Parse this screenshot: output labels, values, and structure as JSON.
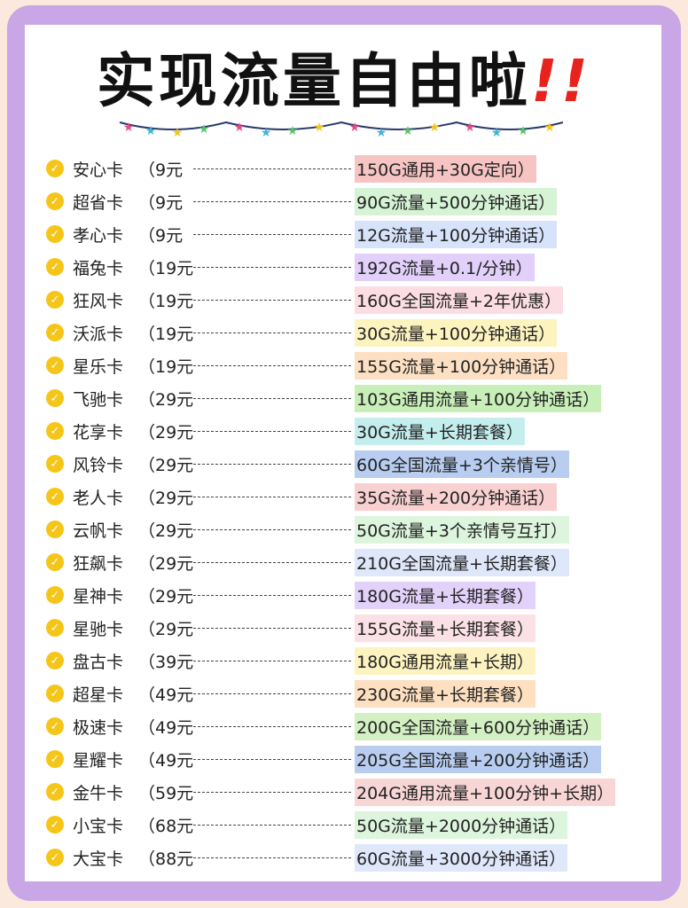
{
  "header": {
    "title": "实现流量自由啦",
    "exclaim": "!!"
  },
  "rows": [
    {
      "name": "安心卡",
      "price": "（9元",
      "plan": "150G通用+30G定向）",
      "color": "#f7c4c4"
    },
    {
      "name": "超省卡",
      "price": "（9元",
      "plan": "90G流量+500分钟通话）",
      "color": "#d6f3d6"
    },
    {
      "name": "孝心卡",
      "price": "（9元",
      "plan": "12G流量+100分钟通话）",
      "color": "#d7e3fb"
    },
    {
      "name": "福兔卡",
      "price": "（19元",
      "plan": "192G流量+0.1/分钟）",
      "color": "#e2d0fa"
    },
    {
      "name": "狂风卡",
      "price": "（19元",
      "plan": "160G全国流量+2年优惠）",
      "color": "#fbdde3"
    },
    {
      "name": "沃派卡",
      "price": "（19元",
      "plan": "30G流量+100分钟通话）",
      "color": "#fdf3bf"
    },
    {
      "name": "星乐卡",
      "price": "（19元",
      "plan": "155G流量+100分钟通话）",
      "color": "#fde0c4"
    },
    {
      "name": "飞驰卡",
      "price": "（29元",
      "plan": "103G通用流量+100分钟通话）",
      "color": "#c9efb9"
    },
    {
      "name": "花享卡",
      "price": "（29元",
      "plan": "30G流量+长期套餐）",
      "color": "#c4eeee"
    },
    {
      "name": "风铃卡",
      "price": "（29元",
      "plan": "60G全国流量+3个亲情号）",
      "color": "#b8cdf0"
    },
    {
      "name": "老人卡",
      "price": "（29元",
      "plan": "35G流量+200分钟通话）",
      "color": "#f9d0d0"
    },
    {
      "name": "云帆卡",
      "price": "（29元",
      "plan": "50G流量+3个亲情号互打）",
      "color": "#dcf5dc"
    },
    {
      "name": "狂飙卡",
      "price": "（29元",
      "plan": "210G全国流量+长期套餐）",
      "color": "#dfe7fa"
    },
    {
      "name": "星神卡",
      "price": "（29元",
      "plan": "180G流量+长期套餐）",
      "color": "#e2d2fa"
    },
    {
      "name": "星驰卡",
      "price": "（29元",
      "plan": "155G流量+长期套餐）",
      "color": "#fbe0e6"
    },
    {
      "name": "盘古卡",
      "price": "（39元",
      "plan": "180G通用流量+长期）",
      "color": "#fdf3c0"
    },
    {
      "name": "超星卡",
      "price": "（49元",
      "plan": "230G流量+长期套餐）",
      "color": "#fde0c0"
    },
    {
      "name": "极速卡",
      "price": "（49元",
      "plan": "200G全国流量+600分钟通话）",
      "color": "#d3f0c3"
    },
    {
      "name": "星耀卡",
      "price": "（49元",
      "plan": "205G全国流量+200分钟通话）",
      "color": "#b8cdf0"
    },
    {
      "name": "金牛卡",
      "price": "（59元",
      "plan": "204G通用流量+100分钟+长期）",
      "color": "#f9d6d6"
    },
    {
      "name": "小宝卡",
      "price": "（68元",
      "plan": "50G流量+2000分钟通话）",
      "color": "#dcf5dc"
    },
    {
      "name": "大宝卡",
      "price": "（88元",
      "plan": "60G流量+3000分钟通话）",
      "color": "#dfe7fa"
    }
  ]
}
